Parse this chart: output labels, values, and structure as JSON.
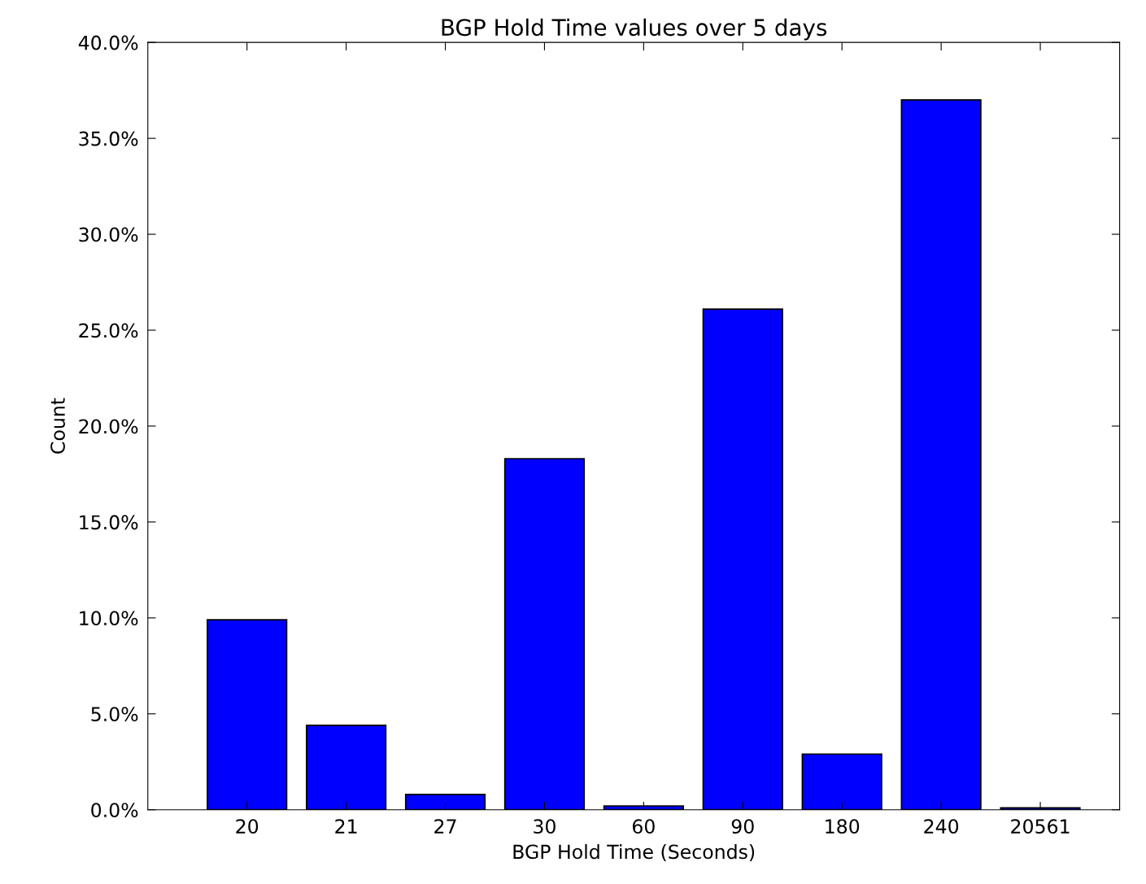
{
  "chart_data": {
    "type": "bar",
    "title": "BGP Hold Time values over 5 days",
    "xlabel": "BGP Hold Time (Seconds)",
    "ylabel": "Count",
    "categories": [
      "20",
      "21",
      "27",
      "30",
      "60",
      "90",
      "180",
      "240",
      "20561"
    ],
    "values": [
      9.9,
      4.4,
      0.8,
      18.3,
      0.2,
      26.1,
      2.9,
      37.0,
      0.1
    ],
    "color": "#0000ff",
    "ylim": [
      0,
      40
    ],
    "yticks": [
      {
        "value": 0,
        "label": "0.0%"
      },
      {
        "value": 5,
        "label": "5.0%"
      },
      {
        "value": 10,
        "label": "10.0%"
      },
      {
        "value": 15,
        "label": "15.0%"
      },
      {
        "value": 20,
        "label": "20.0%"
      },
      {
        "value": 25,
        "label": "25.0%"
      },
      {
        "value": 30,
        "label": "30.0%"
      },
      {
        "value": 35,
        "label": "35.0%"
      },
      {
        "value": 40,
        "label": "40.0%"
      }
    ],
    "grid": false,
    "legend": false
  }
}
